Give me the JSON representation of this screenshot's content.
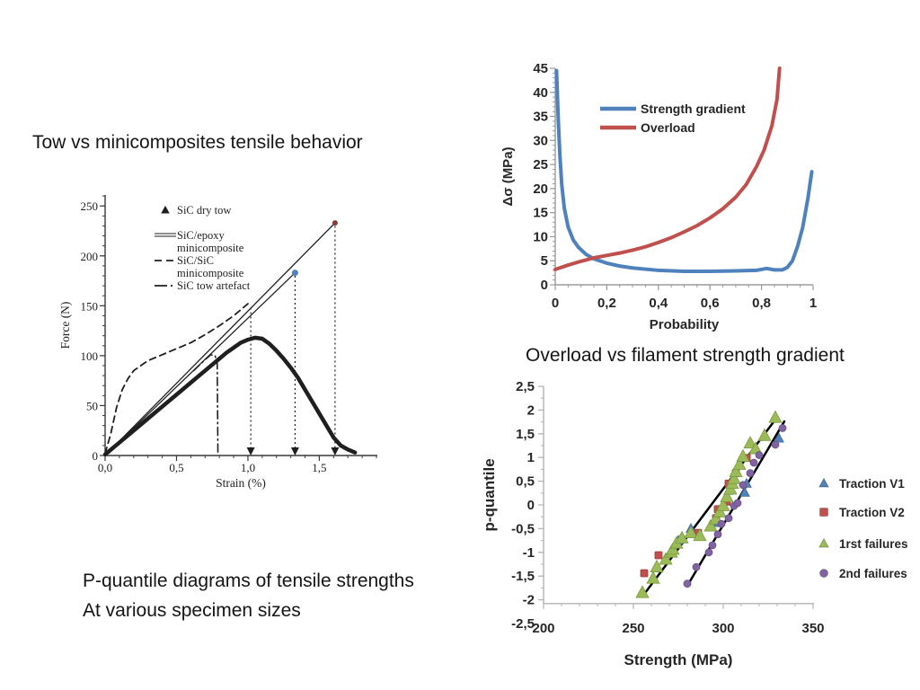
{
  "slide": {
    "captions": {
      "top_left": "Tow vs minicomposites tensile behavior",
      "mid_right": "Overload vs filament strength gradient",
      "bottom_left_line1": "P-quantile diagrams of tensile strengths",
      "bottom_left_line2": "At various specimen sizes"
    }
  },
  "colors": {
    "blue": "#4F81BD",
    "red": "#C0504D",
    "green": "#9BBB59",
    "purple": "#8064A2",
    "ink": "#1f1f1f",
    "axis_gray": "#9b9b9b"
  },
  "chart_data": [
    {
      "id": "tow-minicomposite-force-strain",
      "type": "line",
      "title": "",
      "xlabel": "Strain (%)",
      "ylabel": "Force (N)",
      "xlim": [
        0,
        1.9
      ],
      "ylim": [
        0,
        261
      ],
      "xticks": [
        {
          "v": 0,
          "label": "0,0"
        },
        {
          "v": 0.5,
          "label": "0,5"
        },
        {
          "v": 1.0,
          "label": "1,0"
        },
        {
          "v": 1.5,
          "label": "1,5"
        }
      ],
      "yticks": [
        {
          "v": 0,
          "label": "0"
        },
        {
          "v": 50,
          "label": "50"
        },
        {
          "v": 100,
          "label": "100"
        },
        {
          "v": 150,
          "label": "150"
        },
        {
          "v": 200,
          "label": "200"
        },
        {
          "v": 250,
          "label": "250"
        }
      ],
      "minor_x": 0.1,
      "minor_y": 10,
      "legend": [
        {
          "label": "SiC dry tow",
          "swatch": "triangle"
        },
        {
          "label": "SiC/epoxy\nminicomposite",
          "swatch": "double-line"
        },
        {
          "label": "SiC/SiC\nminicomposite",
          "swatch": "dashed"
        },
        {
          "label": "SiC tow artefact",
          "swatch": "dashdot"
        }
      ],
      "series": [
        {
          "name": "SiC dry tow",
          "draw": "line",
          "color": "#1f1f1f",
          "width": 4.5,
          "points": [
            [
              0,
              1
            ],
            [
              0.1,
              13
            ],
            [
              0.2,
              25
            ],
            [
              0.3,
              37
            ],
            [
              0.4,
              49
            ],
            [
              0.5,
              61
            ],
            [
              0.6,
              73
            ],
            [
              0.7,
              85
            ],
            [
              0.8,
              97
            ],
            [
              0.85,
              103
            ],
            [
              0.9,
              108
            ],
            [
              0.95,
              113
            ],
            [
              1.0,
              116
            ],
            [
              1.05,
              118
            ],
            [
              1.1,
              117
            ],
            [
              1.15,
              112
            ],
            [
              1.2,
              105
            ],
            [
              1.25,
              97
            ],
            [
              1.3,
              88
            ],
            [
              1.35,
              78
            ],
            [
              1.4,
              66
            ],
            [
              1.45,
              54
            ],
            [
              1.5,
              42
            ],
            [
              1.55,
              30
            ],
            [
              1.6,
              18
            ],
            [
              1.65,
              10
            ],
            [
              1.7,
              6
            ],
            [
              1.75,
              3
            ]
          ]
        },
        {
          "name": "SiC/epoxy minicomposite specimen 1",
          "draw": "line",
          "color": "#1f1f1f",
          "width": 1.3,
          "points": [
            [
              0,
              0
            ],
            [
              1.61,
              233
            ]
          ],
          "end_dot": {
            "color": "#8b3a3a",
            "r": 3
          }
        },
        {
          "name": "SiC/epoxy minicomposite specimen 2",
          "draw": "line",
          "color": "#1f1f1f",
          "width": 1.3,
          "points": [
            [
              0,
              0
            ],
            [
              1.33,
              183
            ]
          ],
          "end_dot": {
            "color": "#4F81BD",
            "r": 3.5
          }
        },
        {
          "name": "SiC/SiC minicomposite",
          "draw": "line",
          "color": "#1f1f1f",
          "width": 1.8,
          "dash": "7 5",
          "points": [
            [
              0,
              2
            ],
            [
              0.04,
              22
            ],
            [
              0.08,
              48
            ],
            [
              0.12,
              66
            ],
            [
              0.16,
              77
            ],
            [
              0.2,
              85
            ],
            [
              0.3,
              95
            ],
            [
              0.4,
              101
            ],
            [
              0.5,
              107
            ],
            [
              0.6,
              113
            ],
            [
              0.7,
              121
            ],
            [
              0.8,
              130
            ],
            [
              0.9,
              140
            ],
            [
              1.0,
              152
            ]
          ]
        },
        {
          "name": "SiC tow artefact",
          "draw": "line",
          "color": "#1f1f1f",
          "width": 1.6,
          "dash": "9 4 1.5 4",
          "points": [
            [
              0.62,
              85
            ],
            [
              0.7,
              96
            ],
            [
              0.74,
              101
            ],
            [
              0.77,
              100
            ],
            [
              0.785,
              92
            ],
            [
              0.79,
              0
            ]
          ]
        }
      ],
      "arrows": [
        {
          "x": 1.02,
          "y_top": 148
        },
        {
          "x": 1.33,
          "y_top": 180
        },
        {
          "x": 1.61,
          "y_top": 230
        }
      ]
    },
    {
      "id": "overload-vs-strength-gradient",
      "type": "line",
      "title": "",
      "xlabel": "Probability",
      "ylabel": "Δσ (MPa)",
      "xlim": [
        0,
        1
      ],
      "ylim": [
        0,
        45
      ],
      "xticks": [
        {
          "v": 0,
          "label": "0"
        },
        {
          "v": 0.2,
          "label": "0,2"
        },
        {
          "v": 0.4,
          "label": "0,4"
        },
        {
          "v": 0.6,
          "label": "0,6"
        },
        {
          "v": 0.8,
          "label": "0,8"
        },
        {
          "v": 1,
          "label": "1"
        }
      ],
      "yticks": [
        {
          "v": 0,
          "label": "0"
        },
        {
          "v": 5,
          "label": "5"
        },
        {
          "v": 10,
          "label": "10"
        },
        {
          "v": 15,
          "label": "15"
        },
        {
          "v": 20,
          "label": "20"
        },
        {
          "v": 25,
          "label": "25"
        },
        {
          "v": 30,
          "label": "30"
        },
        {
          "v": 35,
          "label": "35"
        },
        {
          "v": 40,
          "label": "40"
        },
        {
          "v": 45,
          "label": "45"
        }
      ],
      "minor_x": 0.05,
      "minor_y": 1,
      "legend": [
        {
          "label": "Strength gradient",
          "color": "#4F81BD"
        },
        {
          "label": "Overload",
          "color": "#C0504D"
        }
      ],
      "series": [
        {
          "name": "Strength gradient",
          "draw": "line",
          "color": "#4F81BD",
          "width": 4,
          "points": [
            [
              0.005,
              44.5
            ],
            [
              0.008,
              40
            ],
            [
              0.012,
              34
            ],
            [
              0.018,
              27
            ],
            [
              0.025,
              21
            ],
            [
              0.035,
              16
            ],
            [
              0.05,
              12
            ],
            [
              0.07,
              9.3
            ],
            [
              0.09,
              7.8
            ],
            [
              0.12,
              6.3
            ],
            [
              0.15,
              5.4
            ],
            [
              0.2,
              4.5
            ],
            [
              0.25,
              3.9
            ],
            [
              0.3,
              3.5
            ],
            [
              0.4,
              3.0
            ],
            [
              0.5,
              2.8
            ],
            [
              0.6,
              2.8
            ],
            [
              0.7,
              2.9
            ],
            [
              0.78,
              3.0
            ],
            [
              0.82,
              3.4
            ],
            [
              0.85,
              3.1
            ],
            [
              0.88,
              3.1
            ],
            [
              0.9,
              3.6
            ],
            [
              0.92,
              5
            ],
            [
              0.94,
              8
            ],
            [
              0.96,
              12
            ],
            [
              0.98,
              18
            ],
            [
              0.995,
              23.5
            ]
          ]
        },
        {
          "name": "Overload",
          "draw": "line",
          "color": "#C0504D",
          "width": 4,
          "points": [
            [
              0,
              3.2
            ],
            [
              0.05,
              4.1
            ],
            [
              0.1,
              4.9
            ],
            [
              0.15,
              5.6
            ],
            [
              0.2,
              6.1
            ],
            [
              0.25,
              6.6
            ],
            [
              0.3,
              7.2
            ],
            [
              0.35,
              7.9
            ],
            [
              0.4,
              8.8
            ],
            [
              0.45,
              9.8
            ],
            [
              0.5,
              11
            ],
            [
              0.55,
              12.3
            ],
            [
              0.6,
              13.9
            ],
            [
              0.65,
              15.8
            ],
            [
              0.7,
              18.2
            ],
            [
              0.74,
              20.8
            ],
            [
              0.78,
              24.5
            ],
            [
              0.81,
              28
            ],
            [
              0.84,
              33
            ],
            [
              0.86,
              38.5
            ],
            [
              0.87,
              45
            ]
          ]
        }
      ]
    },
    {
      "id": "p-quantile-strength",
      "type": "scatter",
      "title": "",
      "xlabel": "Strength (MPa)",
      "ylabel": "p-quantile",
      "xlim": [
        200,
        350
      ],
      "ylim": [
        -2.5,
        2.5
      ],
      "x_axis_at": -2.08,
      "tick_y_min": -2,
      "xticks": [
        {
          "v": 200,
          "label": "200"
        },
        {
          "v": 250,
          "label": "250"
        },
        {
          "v": 300,
          "label": "300"
        },
        {
          "v": 350,
          "label": "350"
        }
      ],
      "yticks": [
        {
          "v": 2.5,
          "label": "2,5"
        },
        {
          "v": 2,
          "label": "2"
        },
        {
          "v": 1.5,
          "label": "1,5"
        },
        {
          "v": 1,
          "label": "1"
        },
        {
          "v": 0.5,
          "label": "0,5"
        },
        {
          "v": 0,
          "label": "0"
        },
        {
          "v": -0.5,
          "label": "-0,5"
        },
        {
          "v": -1,
          "label": "-1"
        },
        {
          "v": -1.5,
          "label": "-1,5"
        },
        {
          "v": -2,
          "label": "-2"
        },
        {
          "v": -2.5,
          "label": "-2,5"
        }
      ],
      "minor_x": 10,
      "minor_y": 0.25,
      "legend": [
        {
          "label": "Traction V1",
          "marker": "triangle",
          "color": "#4F81BD"
        },
        {
          "label": "Traction V2",
          "marker": "square",
          "color": "#C0504D"
        },
        {
          "label": "1rst failures",
          "marker": "triangle",
          "color": "#9BBB59"
        },
        {
          "label": "2nd failures",
          "marker": "circle",
          "color": "#8064A2"
        }
      ],
      "series": [
        {
          "name": "Traction V1",
          "marker": "triangle",
          "color": "#4F81BD",
          "edge": "#39699f",
          "size": 9,
          "points": [
            [
              275,
              -0.75
            ],
            [
              282,
              -0.5
            ],
            [
              296,
              -0.38
            ],
            [
              303,
              0.3
            ],
            [
              312,
              0.26
            ],
            [
              313,
              0.45
            ],
            [
              331,
              1.4
            ]
          ]
        },
        {
          "name": "Traction V2",
          "marker": "square",
          "color": "#C0504D",
          "edge": "#9e3d3a",
          "size": 8,
          "points": [
            [
              256,
              -1.44
            ],
            [
              264,
              -1.06
            ],
            [
              286,
              -0.59
            ],
            [
              296,
              -0.28
            ],
            [
              297,
              -0.09
            ],
            [
              302,
              0.07
            ],
            [
              303,
              0.45
            ],
            [
              307,
              0.67
            ],
            [
              313,
              0.99
            ]
          ]
        },
        {
          "name": "1rst failures",
          "marker": "triangle",
          "color": "#9BBB59",
          "edge": "#7a9a3f",
          "size": 12,
          "points": [
            [
              255,
              -1.85
            ],
            [
              261,
              -1.55
            ],
            [
              263,
              -1.31
            ],
            [
              268,
              -1.15
            ],
            [
              271,
              -1.0
            ],
            [
              272,
              -0.94
            ],
            [
              274,
              -0.81
            ],
            [
              277,
              -0.7
            ],
            [
              282,
              -0.59
            ],
            [
              287,
              -0.65
            ],
            [
              293,
              -0.45
            ],
            [
              296,
              -0.3
            ],
            [
              298,
              -0.15
            ],
            [
              300,
              -0.02
            ],
            [
              302,
              0.17
            ],
            [
              304,
              0.33
            ],
            [
              305,
              0.45
            ],
            [
              306,
              0.55
            ],
            [
              307,
              0.7
            ],
            [
              309,
              0.85
            ],
            [
              311,
              1.02
            ],
            [
              315,
              1.3
            ],
            [
              318,
              1.18
            ],
            [
              323,
              1.46
            ],
            [
              329,
              1.84
            ]
          ]
        },
        {
          "name": "2nd failures",
          "marker": "circle",
          "color": "#8064A2",
          "edge": "#67508a",
          "size": 8,
          "points": [
            [
              280,
              -1.66
            ],
            [
              285,
              -1.31
            ],
            [
              292,
              -1.0
            ],
            [
              294,
              -0.85
            ],
            [
              297,
              -0.62
            ],
            [
              299,
              -0.4
            ],
            [
              303,
              -0.28
            ],
            [
              306,
              -0.02
            ],
            [
              308,
              0.04
            ],
            [
              311,
              0.42
            ],
            [
              315,
              0.67
            ],
            [
              317,
              0.89
            ],
            [
              320,
              1.05
            ],
            [
              329,
              1.27
            ],
            [
              333,
              1.62
            ]
          ]
        }
      ],
      "lines": [
        {
          "name": "fit line small specimens",
          "color": "#000000",
          "width": 2.5,
          "points": [
            [
              255,
              -1.93
            ],
            [
              329,
              1.8
            ]
          ]
        },
        {
          "name": "fit line large specimens",
          "color": "#000000",
          "width": 2.5,
          "points": [
            [
              281,
              -1.64
            ],
            [
              334,
              1.76
            ]
          ]
        }
      ]
    }
  ]
}
